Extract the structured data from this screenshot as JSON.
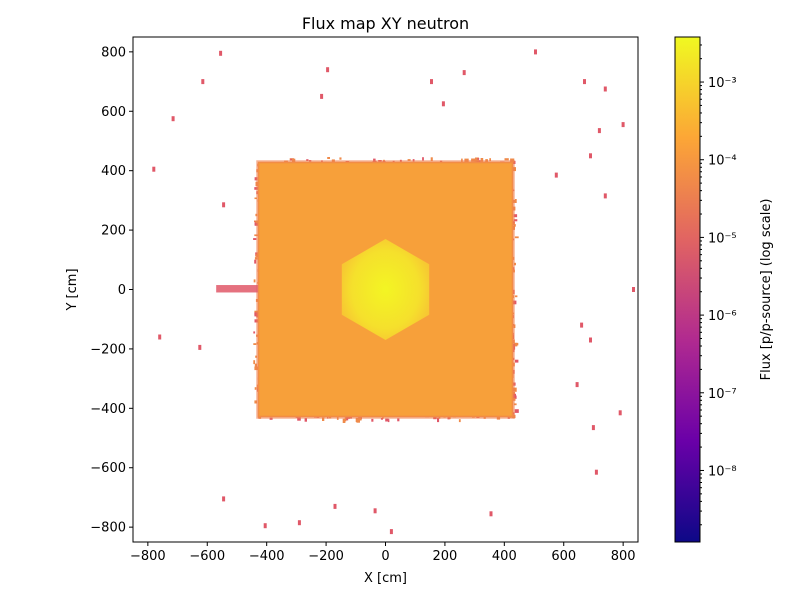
{
  "chart_data": {
    "type": "heatmap",
    "title": "Flux map XY neutron",
    "xlabel": "X [cm]",
    "ylabel": "Y [cm]",
    "xlim": [
      -850,
      850
    ],
    "ylim": [
      -850,
      850
    ],
    "xticks": [
      -800,
      -600,
      -400,
      -200,
      0,
      200,
      400,
      600,
      800
    ],
    "yticks": [
      -800,
      -600,
      -400,
      -200,
      0,
      200,
      400,
      600,
      800
    ],
    "grid": false,
    "colorbar": {
      "label": "Flux [p/p-source] (log scale)",
      "scale": "log",
      "range": [
        1.2e-09,
        0.0038
      ],
      "colormap": "plasma",
      "ticks": [
        {
          "value": 1e-08,
          "label": "10⁻⁸"
        },
        {
          "value": 1e-07,
          "label": "10⁻⁷"
        },
        {
          "value": 1e-06,
          "label": "10⁻⁶"
        },
        {
          "value": 1e-05,
          "label": "10⁻⁵"
        },
        {
          "value": 0.0001,
          "label": "10⁻⁴"
        },
        {
          "value": 0.001,
          "label": "10⁻³"
        }
      ]
    },
    "regions": [
      {
        "name": "outer-square",
        "shape": "rect",
        "x": [
          -430,
          430
        ],
        "y": [
          -430,
          430
        ],
        "flux": 0.00012
      },
      {
        "name": "core-hexagon",
        "shape": "hexagon",
        "center": [
          0,
          0
        ],
        "radius": 170,
        "flux": 0.002
      },
      {
        "name": "left-streak",
        "shape": "rect",
        "x": [
          -570,
          -430
        ],
        "y": [
          -10,
          15
        ],
        "flux": 2e-05
      }
    ],
    "sparse_points": [
      [
        -555,
        795
      ],
      [
        -615,
        700
      ],
      [
        -715,
        575
      ],
      [
        -195,
        740
      ],
      [
        -215,
        650
      ],
      [
        -780,
        405
      ],
      [
        -545,
        285
      ],
      [
        155,
        700
      ],
      [
        265,
        730
      ],
      [
        195,
        625
      ],
      [
        505,
        800
      ],
      [
        670,
        700
      ],
      [
        740,
        675
      ],
      [
        720,
        535
      ],
      [
        800,
        555
      ],
      [
        690,
        450
      ],
      [
        575,
        385
      ],
      [
        740,
        315
      ],
      [
        -760,
        -160
      ],
      [
        -625,
        -195
      ],
      [
        660,
        -120
      ],
      [
        690,
        -170
      ],
      [
        645,
        -320
      ],
      [
        790,
        -415
      ],
      [
        700,
        -465
      ],
      [
        710,
        -615
      ],
      [
        -545,
        -705
      ],
      [
        -405,
        -795
      ],
      [
        -290,
        -785
      ],
      [
        -170,
        -730
      ],
      [
        -35,
        -745
      ],
      [
        20,
        -815
      ],
      [
        355,
        -755
      ],
      [
        835,
        0
      ]
    ]
  },
  "colors": {
    "colormap_stops": [
      "#0d0887",
      "#6a00a8",
      "#b12a90",
      "#e16462",
      "#fca636",
      "#f0f921"
    ],
    "square_fill": "#f7a03a",
    "core_fill": "#f2ec29",
    "edge_fill": "#e05868"
  }
}
